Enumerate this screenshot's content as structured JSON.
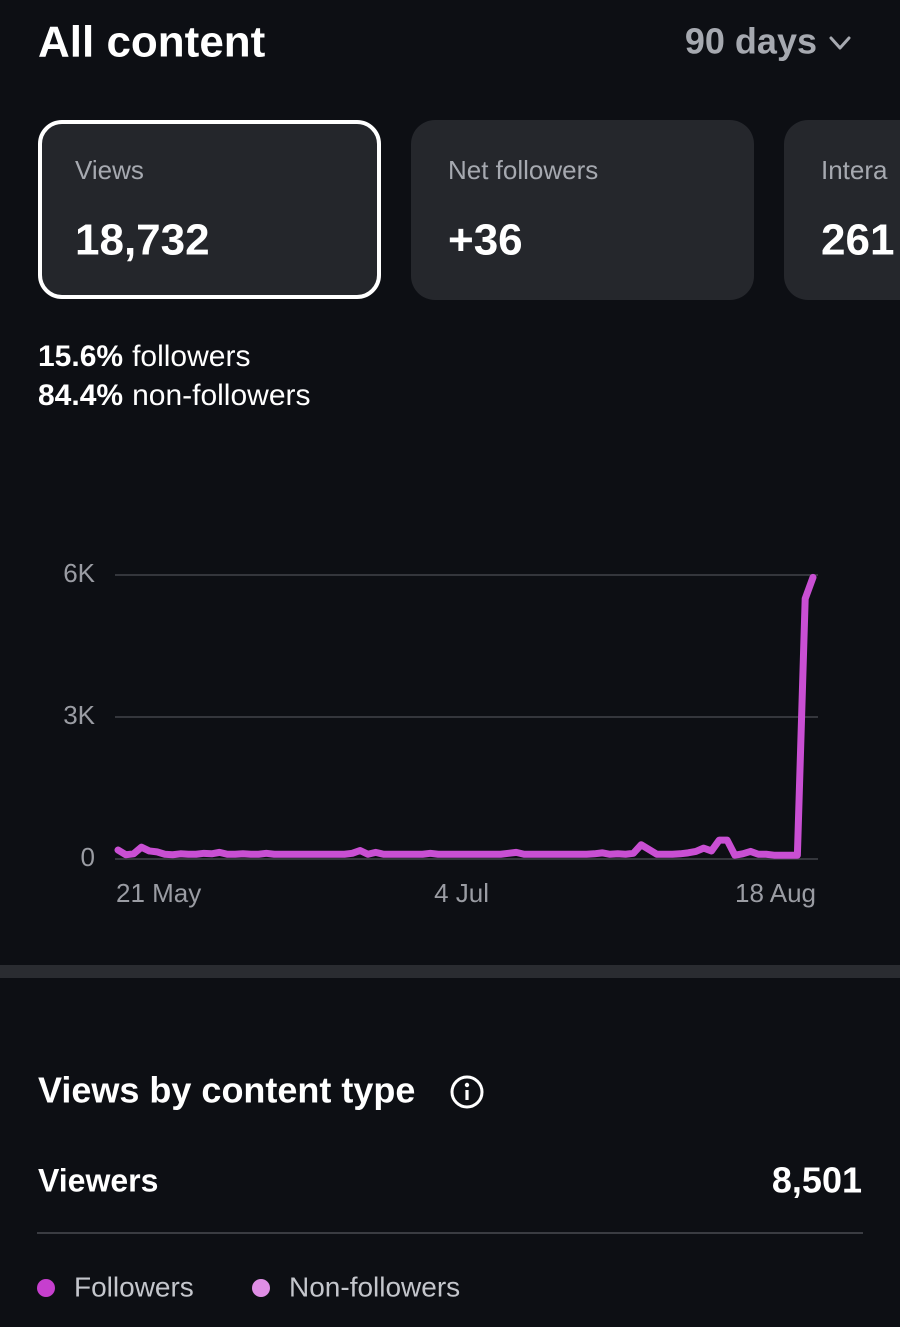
{
  "header": {
    "title": "All content",
    "period": "90 days"
  },
  "cards": [
    {
      "label": "Views",
      "value": "18,732"
    },
    {
      "label": "Net followers",
      "value": "+36"
    },
    {
      "label": "Intera",
      "value": "261"
    }
  ],
  "audience": [
    {
      "share": "15.6%",
      "label": "followers"
    },
    {
      "share": "84.4%",
      "label": "non-followers"
    }
  ],
  "chart_data": {
    "type": "line",
    "categories": [
      "21 May",
      null,
      null,
      null,
      null,
      null,
      null,
      null,
      null,
      null,
      null,
      null,
      null,
      null,
      null,
      null,
      null,
      null,
      null,
      null,
      null,
      null,
      null,
      null,
      null,
      null,
      null,
      null,
      null,
      null,
      null,
      null,
      null,
      null,
      null,
      null,
      null,
      null,
      null,
      null,
      null,
      null,
      null,
      null,
      "4 Jul",
      null,
      null,
      null,
      null,
      null,
      null,
      null,
      null,
      null,
      null,
      null,
      null,
      null,
      null,
      null,
      null,
      null,
      null,
      null,
      null,
      null,
      null,
      null,
      null,
      null,
      null,
      null,
      null,
      null,
      null,
      null,
      null,
      null,
      null,
      null,
      null,
      null,
      null,
      null,
      null,
      null,
      null,
      null,
      null,
      "18 Aug"
    ],
    "values": [
      190,
      90,
      110,
      250,
      170,
      150,
      100,
      90,
      110,
      100,
      100,
      120,
      110,
      140,
      100,
      100,
      110,
      100,
      100,
      120,
      100,
      100,
      100,
      100,
      100,
      100,
      100,
      100,
      100,
      100,
      120,
      180,
      100,
      140,
      100,
      100,
      100,
      100,
      100,
      100,
      120,
      100,
      100,
      100,
      100,
      100,
      100,
      100,
      100,
      100,
      120,
      140,
      100,
      100,
      100,
      100,
      100,
      100,
      100,
      100,
      100,
      110,
      130,
      100,
      110,
      100,
      120,
      300,
      200,
      100,
      100,
      100,
      110,
      130,
      160,
      230,
      170,
      400,
      400,
      80,
      110,
      160,
      100,
      100,
      80,
      80,
      80,
      80,
      5500,
      5950
    ],
    "color": "#c94fd3",
    "ylim": [
      0,
      6000
    ],
    "yticks": [
      0,
      {
        "value": 3000,
        "label": "3K"
      },
      {
        "value": 6000,
        "label": "6K"
      }
    ],
    "grid": true
  },
  "section": {
    "title": "Views by content type",
    "metric_label": "Viewers",
    "metric_value": "8,501",
    "legend": [
      {
        "name": "Followers",
        "color": "#c63fce"
      },
      {
        "name": "Non-followers",
        "color": "#df8ee5"
      }
    ]
  }
}
